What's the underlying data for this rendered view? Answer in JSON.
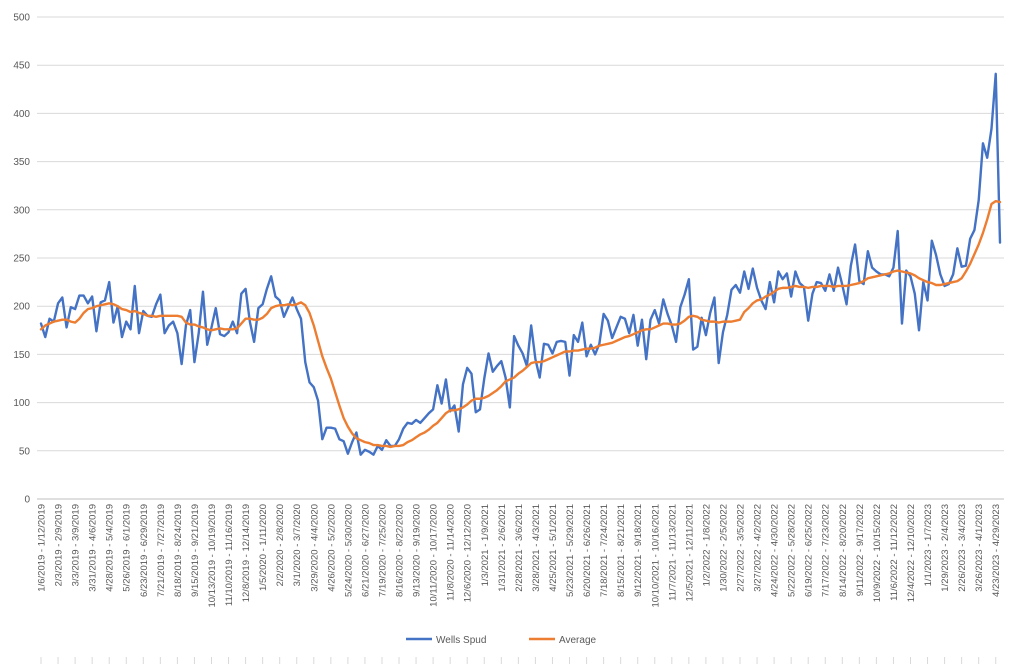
{
  "chart_data": {
    "type": "line",
    "title": "",
    "xlabel": "",
    "ylabel": "",
    "ylim": [
      0,
      500
    ],
    "yticks": [
      0,
      50,
      100,
      150,
      200,
      250,
      300,
      350,
      400,
      450,
      500
    ],
    "grid": true,
    "legend_position": "bottom",
    "x_tick_labels": [
      "1/6/2019 - 1/12/2019",
      "2/3/2019 - 2/9/2019",
      "3/3/2019 - 3/9/2019",
      "3/31/2019 - 4/6/2019",
      "4/28/2019 - 5/4/2019",
      "5/26/2019 - 6/1/2019",
      "6/23/2019 - 6/29/2019",
      "7/21/2019 - 7/27/2019",
      "8/18/2019 - 8/24/2019",
      "9/15/2019 - 9/21/2019",
      "10/13/2019 - 10/19/2019",
      "11/10/2019 - 11/16/2019",
      "12/8/2019 - 12/14/2019",
      "1/5/2020 - 1/11/2020",
      "2/2/2020 - 2/8/2020",
      "3/1/2020 - 3/7/2020",
      "3/29/2020 - 4/4/2020",
      "4/26/2020 - 5/2/2020",
      "5/24/2020 - 5/30/2020",
      "6/21/2020 - 6/27/2020",
      "7/19/2020 - 7/25/2020",
      "8/16/2020 - 8/22/2020",
      "9/13/2020 - 9/19/2020",
      "10/11/2020 - 10/17/2020",
      "11/8/2020 - 11/14/2020",
      "12/6/2020 - 12/12/2020",
      "1/3/2021 - 1/9/2021",
      "1/31/2021 - 2/6/2021",
      "2/28/2021 - 3/6/2021",
      "3/28/2021 - 4/3/2021",
      "4/25/2021 - 5/1/2021",
      "5/23/2021 - 5/29/2021",
      "6/20/2021 - 6/26/2021",
      "7/18/2021 - 7/24/2021",
      "8/15/2021 - 8/21/2021",
      "9/12/2021 - 9/18/2021",
      "10/10/2021 - 10/16/2021",
      "11/7/2021 - 11/13/2021",
      "12/5/2021 - 12/11/2021",
      "1/2/2022 - 1/8/2022",
      "1/30/2022 - 2/5/2022",
      "2/27/2022 - 3/5/2022",
      "3/27/2022 - 4/2/2022",
      "4/24/2022 - 4/30/2022",
      "5/22/2022 - 5/28/2022",
      "6/19/2022 - 6/25/2022",
      "7/17/2022 - 7/23/2022",
      "8/14/2022 - 8/20/2022",
      "9/11/2022 - 9/17/2022",
      "10/9/2022 - 10/15/2022",
      "11/6/2022 - 11/12/2022",
      "12/4/2022 - 12/10/2022",
      "1/1/2023 - 1/7/2023",
      "1/29/2023 - 2/4/2023",
      "2/26/2023 - 3/4/2023",
      "3/26/2023 - 4/1/2023",
      "4/23/2023 - 4/29/2023"
    ],
    "series": [
      {
        "name": "Wells Spud",
        "color": "#4472C4",
        "values": [
          182,
          168,
          187,
          184,
          203,
          209,
          178,
          199,
          197,
          211,
          211,
          203,
          210,
          174,
          204,
          206,
          225,
          183,
          200,
          168,
          184,
          176,
          221,
          172,
          195,
          190,
          189,
          202,
          212,
          172,
          180,
          184,
          172,
          140,
          180,
          196,
          142,
          172,
          215,
          160,
          178,
          198,
          171,
          169,
          173,
          184,
          172,
          213,
          218,
          184,
          163,
          198,
          202,
          218,
          231,
          210,
          206,
          189,
          199,
          209,
          197,
          187,
          142,
          121,
          116,
          102,
          62,
          74,
          74,
          73,
          62,
          60,
          47,
          59,
          69,
          46,
          51,
          49,
          46,
          55,
          51,
          61,
          55,
          55,
          62,
          73,
          79,
          78,
          82,
          79,
          84,
          89,
          93,
          118,
          99,
          124,
          91,
          97,
          70,
          119,
          136,
          130,
          90,
          93,
          125,
          151,
          132,
          138,
          143,
          126,
          95,
          169,
          159,
          151,
          138,
          180,
          145,
          126,
          161,
          160,
          151,
          163,
          164,
          163,
          128,
          170,
          163,
          183,
          148,
          160,
          150,
          161,
          192,
          185,
          167,
          178,
          189,
          187,
          172,
          191,
          159,
          186,
          145,
          186,
          196,
          182,
          207,
          192,
          180,
          163,
          199,
          212,
          228,
          155,
          158,
          188,
          170,
          193,
          209,
          141,
          173,
          191,
          217,
          222,
          214,
          236,
          218,
          239,
          219,
          206,
          197,
          225,
          204,
          236,
          228,
          234,
          210,
          236,
          224,
          220,
          185,
          213,
          225,
          224,
          216,
          233,
          216,
          240,
          222,
          202,
          242,
          264,
          226,
          223,
          257,
          240,
          236,
          233,
          233,
          231,
          240,
          278,
          182,
          237,
          231,
          213,
          175,
          225,
          206,
          268,
          253,
          233,
          221,
          223,
          233,
          260,
          241,
          242,
          270,
          279,
          310,
          369,
          354,
          384,
          441,
          266
        ]
      },
      {
        "name": "Average",
        "color": "#ED7D31",
        "values": [
          176,
          180,
          182,
          184,
          185,
          186,
          186,
          184,
          183,
          187,
          193,
          197,
          198,
          200,
          201,
          202,
          203,
          202,
          200,
          197,
          196,
          194,
          195,
          193,
          192,
          190,
          190,
          189,
          190,
          190,
          190,
          190,
          190,
          189,
          183,
          181,
          181,
          179,
          178,
          176,
          175,
          176,
          177,
          176,
          176,
          176,
          177,
          182,
          187,
          187,
          186,
          186,
          188,
          192,
          198,
          200,
          201,
          201,
          202,
          201,
          202,
          204,
          201,
          193,
          180,
          164,
          148,
          136,
          125,
          111,
          97,
          84,
          75,
          68,
          63,
          61,
          59,
          58,
          56,
          56,
          55,
          55,
          54,
          55,
          55,
          56,
          59,
          61,
          64,
          67,
          69,
          72,
          76,
          79,
          84,
          89,
          92,
          92,
          93,
          95,
          98,
          102,
          104,
          104,
          105,
          107,
          110,
          113,
          117,
          122,
          124,
          126,
          130,
          133,
          137,
          141,
          142,
          142,
          143,
          145,
          147,
          149,
          151,
          153,
          153,
          154,
          154,
          155,
          156,
          156,
          157,
          159,
          160,
          161,
          162,
          164,
          166,
          168,
          169,
          171,
          173,
          175,
          176,
          176,
          178,
          180,
          182,
          182,
          181,
          181,
          182,
          185,
          189,
          190,
          189,
          186,
          185,
          184,
          184,
          183,
          184,
          184,
          184,
          185,
          186,
          194,
          198,
          203,
          206,
          207,
          210,
          212,
          215,
          218,
          219,
          219,
          220,
          221,
          220,
          220,
          219,
          220,
          220,
          221,
          221,
          221,
          220,
          221,
          221,
          221,
          222,
          223,
          224,
          226,
          229,
          230,
          231,
          232,
          233,
          234,
          236,
          237,
          236,
          235,
          234,
          232,
          229,
          227,
          225,
          224,
          222,
          222,
          223,
          224,
          225,
          226,
          229,
          236,
          244,
          254,
          264,
          276,
          290,
          306,
          309,
          308
        ]
      }
    ]
  }
}
